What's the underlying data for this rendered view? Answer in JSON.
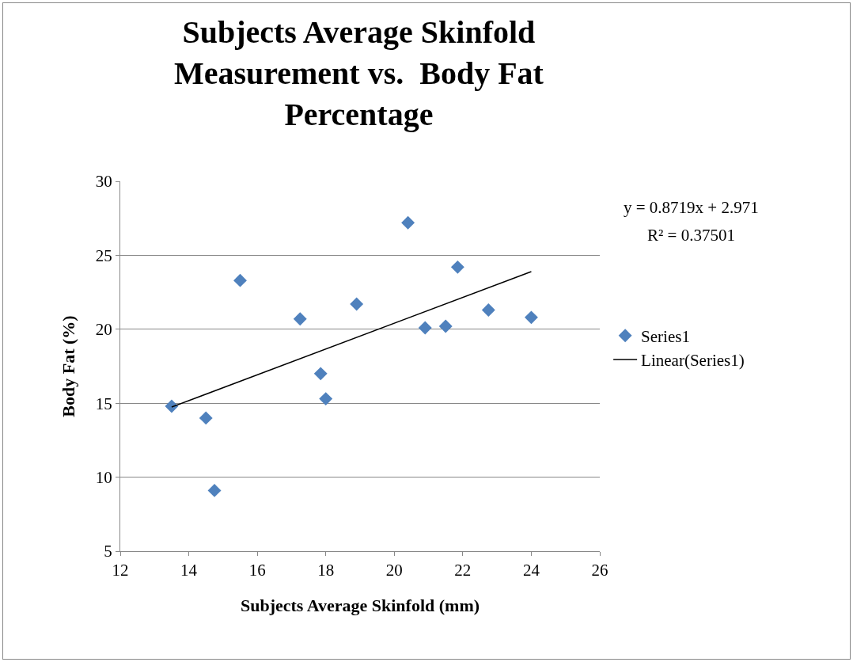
{
  "chart_data": {
    "type": "scatter",
    "title": "Subjects Average Skinfold Measurement vs.  Body Fat Percentage",
    "xlabel": "Subjects Average Skinfold (mm)",
    "ylabel": "Body Fat (%)",
    "series": [
      {
        "name": "Series1",
        "color": "#4f81bd",
        "x": [
          13.5,
          14.5,
          14.75,
          15.5,
          17.25,
          17.85,
          18.0,
          18.9,
          20.4,
          20.9,
          21.5,
          21.85,
          22.75,
          24.0
        ],
        "values": [
          14.8,
          14.0,
          9.1,
          23.3,
          20.7,
          17.0,
          15.3,
          21.7,
          27.2,
          20.1,
          20.2,
          24.2,
          21.3,
          20.8
        ]
      },
      {
        "name": "Linear(Series1)",
        "type": "line",
        "marker": "none",
        "color": "#000000",
        "x": [
          13.5,
          24.0
        ],
        "values": [
          14.74,
          23.9
        ]
      }
    ],
    "annotations": [
      "y = 0.8719x + 2.971",
      "R² = 0.37501"
    ],
    "xlim": [
      12,
      26
    ],
    "xticks": [
      12,
      14,
      16,
      18,
      20,
      22,
      24,
      26
    ],
    "ylim": [
      5,
      30
    ],
    "yticks": [
      5,
      10,
      15,
      20,
      25,
      30
    ],
    "grid": "y",
    "legend": "right",
    "marker": "diamond",
    "line_style": "solid"
  }
}
